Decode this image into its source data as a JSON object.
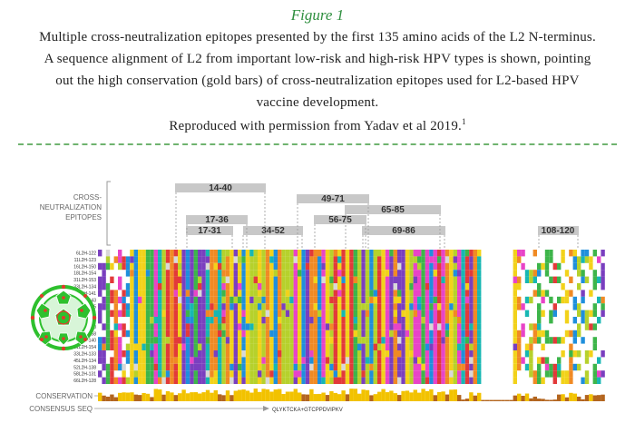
{
  "figure": {
    "title": "Figure 1",
    "caption_lines": [
      "Multiple cross-neutralization epitopes presented by the first 135 amino acids of the L2 N-terminus.",
      "A sequence alignment of L2 from important low-risk and high-risk HPV types is shown, pointing",
      "out the high conservation (gold bars) of cross-neutralization epitopes used for L2-based HPV",
      "vaccine development."
    ],
    "credit": "Reproduced with permission from Yadav et al 2019.",
    "credit_ref": "1"
  },
  "diagram": {
    "epitope_label_lines": [
      "CROSS-",
      "NEUTRALIZATION",
      "EPITOPES"
    ],
    "epitopes": [
      "14-40",
      "17-36",
      "17-31",
      "34-52",
      "49-71",
      "56-75",
      "65-85",
      "69-86",
      "108-120"
    ],
    "row_labels": [
      "6L2H-122",
      "11L2H-123",
      "16L2H-150",
      "18L2H-154",
      "31L2H-153",
      "33L2H-134",
      "35L2H-141",
      "39L2H-143",
      "45L2H-125",
      "52L2H-141",
      "58L2H-133",
      "6L2H-130",
      "16L2H-158",
      "18L2H-140",
      "31L2H-154",
      "33L2H-133",
      "45L2H-134",
      "52L2H-138",
      "58L2H-131",
      "66L2H-128"
    ],
    "conservation_label": "CONSERVATION",
    "consensus_label": "CONSENSUS SEQ",
    "consensus_sequence": "QLYKTCKA+GTCPPDVIPKV",
    "colors": {
      "epitope_bar": "#c8c8c8",
      "conservation_gold": "#f2c200",
      "conservation_brown": "#b3651f",
      "capsid_green": "#2ec02e",
      "capsid_red": "#e23a2a"
    }
  }
}
